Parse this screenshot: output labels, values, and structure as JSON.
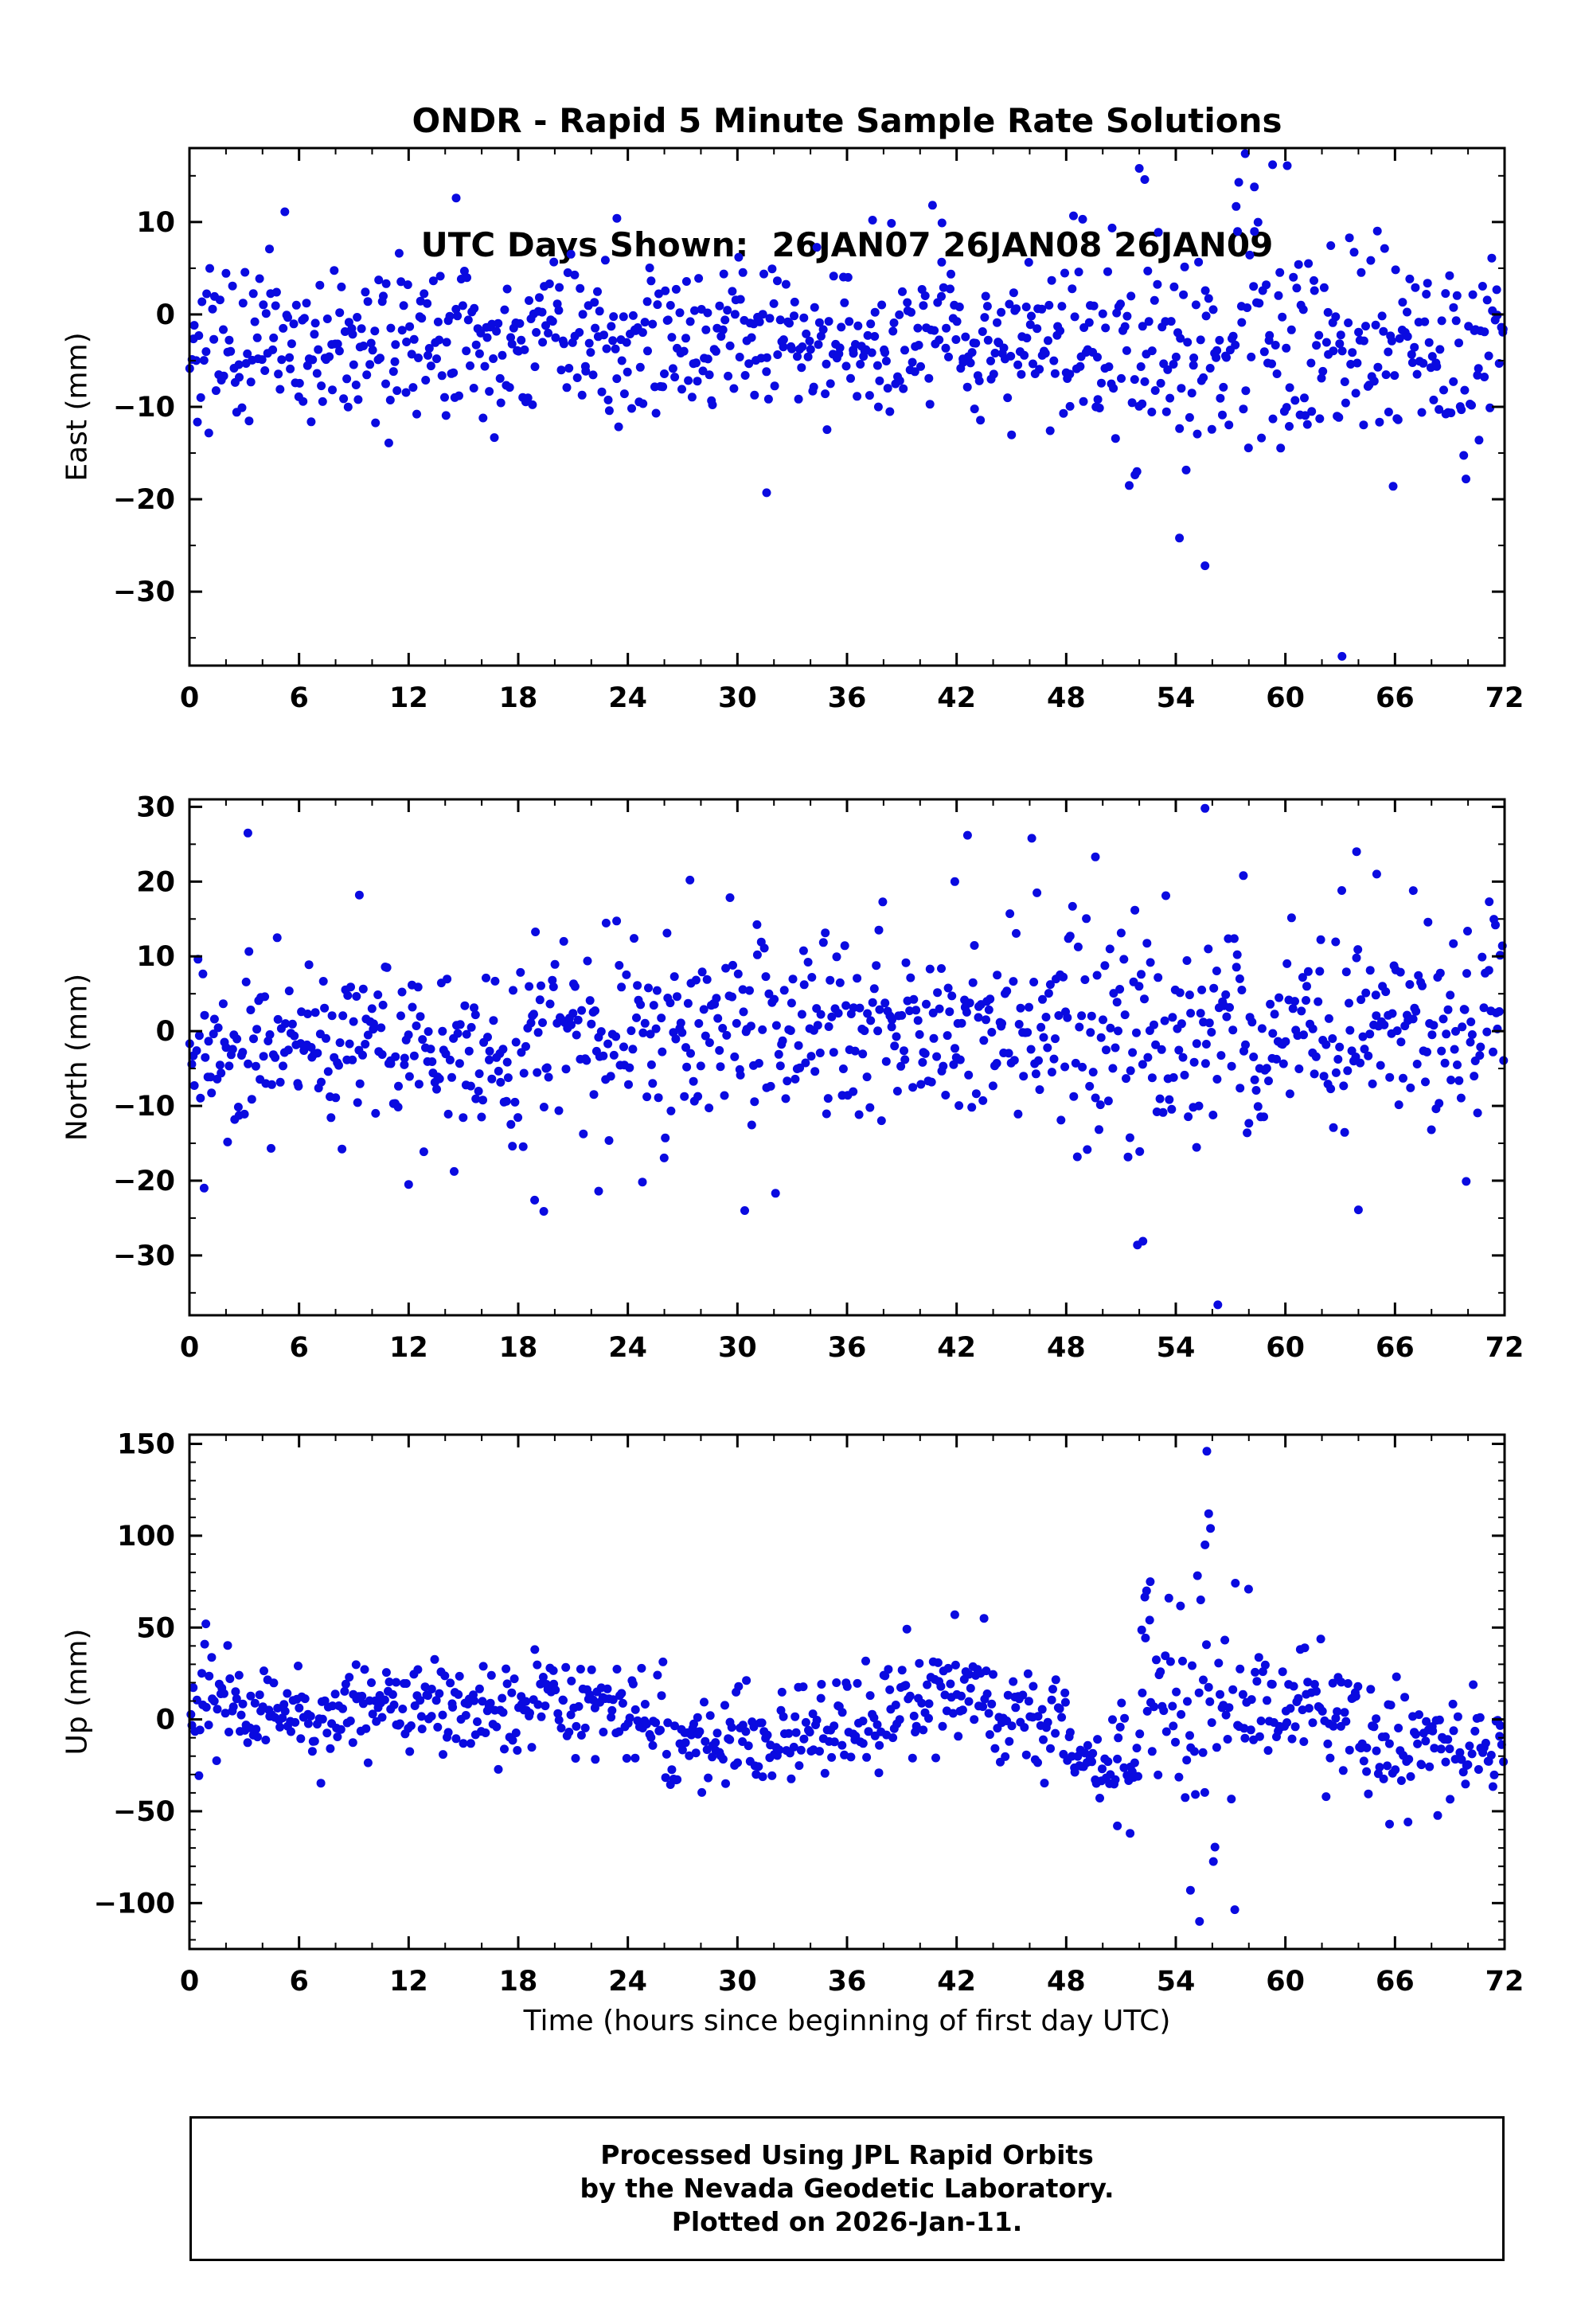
{
  "title": {
    "line1": "ONDR - Rapid 5 Minute Sample Rate Solutions",
    "line2": "UTC Days Shown:  26JAN07 26JAN08 26JAN09"
  },
  "x_axis_label": "Time (hours since beginning of first day UTC)",
  "footer": {
    "line1": "Processed Using JPL Rapid Orbits",
    "line2": "by the Nevada Geodetic Laboratory.",
    "line3": "Plotted on 2026-Jan-11."
  },
  "colors": {
    "points": "#0a0ae0",
    "axis": "#000000",
    "background": "#ffffff"
  },
  "chart_data": [
    {
      "id": "east",
      "type": "scatter",
      "ylabel": "East (mm)",
      "xlim": [
        0,
        72
      ],
      "ylim": [
        -38,
        18
      ],
      "xticks": [
        0,
        6,
        12,
        18,
        24,
        30,
        36,
        42,
        48,
        54,
        60,
        66,
        72
      ],
      "yticks": [
        10,
        0,
        -10,
        -20,
        -30
      ],
      "x_minor": 2,
      "y_minor": 5,
      "marker_radius": 5.5,
      "distribution": {
        "n_points": 850,
        "seed": 101,
        "segments": [
          {
            "x0": 0,
            "x1": 48,
            "mean": -2.8,
            "std": 4.3
          },
          {
            "x0": 48,
            "x1": 62,
            "mean": -3.2,
            "std": 6.8
          },
          {
            "x0": 62,
            "x1": 72,
            "mean": -4.5,
            "std": 5.4
          }
        ]
      },
      "outliers": [
        [
          14.6,
          12.6
        ],
        [
          31.6,
          -19.3
        ],
        [
          52.0,
          15.8
        ],
        [
          52.3,
          14.6
        ],
        [
          54.2,
          -24.2
        ],
        [
          55.6,
          -27.2
        ],
        [
          57.8,
          17.4
        ],
        [
          58.3,
          13.8
        ],
        [
          59.3,
          16.2
        ],
        [
          60.1,
          16.1
        ],
        [
          63.1,
          -37.0
        ],
        [
          23.4,
          10.4
        ],
        [
          37.4,
          10.2
        ],
        [
          48.9,
          10.3
        ],
        [
          41.2,
          9.9
        ],
        [
          65.9,
          -18.6
        ],
        [
          70.6,
          -13.6
        ]
      ]
    },
    {
      "id": "north",
      "type": "scatter",
      "ylabel": "North (mm)",
      "xlim": [
        0,
        72
      ],
      "ylim": [
        -38,
        31
      ],
      "xticks": [
        0,
        6,
        12,
        18,
        24,
        30,
        36,
        42,
        48,
        54,
        60,
        66,
        72
      ],
      "yticks": [
        30,
        20,
        10,
        0,
        -10,
        -20,
        -30
      ],
      "x_minor": 2,
      "y_minor": 5,
      "marker_radius": 5.5,
      "distribution": {
        "n_points": 850,
        "seed": 202,
        "segments": [
          {
            "x0": 0,
            "x1": 6,
            "mean": -2.0,
            "std": 6.0
          },
          {
            "x0": 6,
            "x1": 18,
            "mean": -1.8,
            "std": 5.6
          },
          {
            "x0": 18,
            "x1": 30,
            "mean": -0.6,
            "std": 6.6
          },
          {
            "x0": 30,
            "x1": 48,
            "mean": 0.6,
            "std": 6.0
          },
          {
            "x0": 48,
            "x1": 60,
            "mean": 0.2,
            "std": 7.8
          },
          {
            "x0": 60,
            "x1": 72,
            "mean": 1.4,
            "std": 6.4
          }
        ]
      },
      "outliers": [
        [
          3.2,
          26.5
        ],
        [
          9.3,
          18.2
        ],
        [
          0.8,
          -21.0
        ],
        [
          12.0,
          -20.5
        ],
        [
          18.9,
          -22.6
        ],
        [
          19.4,
          -24.1
        ],
        [
          22.4,
          -21.4
        ],
        [
          27.4,
          20.2
        ],
        [
          30.4,
          -24.0
        ],
        [
          42.6,
          26.2
        ],
        [
          41.9,
          20.0
        ],
        [
          46.4,
          18.5
        ],
        [
          49.6,
          23.3
        ],
        [
          51.9,
          -28.6
        ],
        [
          52.2,
          -28.1
        ],
        [
          55.6,
          29.8
        ],
        [
          56.3,
          -36.6
        ],
        [
          57.7,
          20.8
        ],
        [
          63.9,
          24.0
        ],
        [
          65.0,
          21.0
        ],
        [
          67.0,
          18.8
        ],
        [
          64.0,
          -23.9
        ],
        [
          69.9,
          -20.1
        ],
        [
          71.5,
          14.2
        ]
      ]
    },
    {
      "id": "up",
      "type": "scatter",
      "ylabel": "Up (mm)",
      "xlim": [
        0,
        72
      ],
      "ylim": [
        -125,
        155
      ],
      "xticks": [
        0,
        6,
        12,
        18,
        24,
        30,
        36,
        42,
        48,
        54,
        60,
        66,
        72
      ],
      "yticks": [
        150,
        100,
        50,
        0,
        -50,
        -100
      ],
      "x_minor": 2,
      "y_minor": 10,
      "marker_radius": 5.5,
      "distribution": {
        "n_points": 820,
        "seed": 303,
        "segments": [
          {
            "x0": 0,
            "x1": 4,
            "mean": 8,
            "std": 14
          },
          {
            "x0": 4,
            "x1": 12,
            "mean": 5,
            "std": 12
          },
          {
            "x0": 12,
            "x1": 20,
            "mean": 8,
            "std": 14
          },
          {
            "x0": 20,
            "x1": 26,
            "mean": 4,
            "std": 13
          },
          {
            "x0": 26,
            "x1": 34,
            "mean": -8,
            "std": 14
          },
          {
            "x0": 34,
            "x1": 38,
            "mean": -4,
            "std": 13
          },
          {
            "x0": 38,
            "x1": 44,
            "mean": 10,
            "std": 13
          },
          {
            "x0": 44,
            "x1": 48,
            "mean": 0,
            "std": 14
          },
          {
            "x0": 48,
            "x1": 52,
            "mean": -25,
            "std": 15
          },
          {
            "x0": 52,
            "x1": 54,
            "mean": 25,
            "std": 24
          },
          {
            "x0": 54,
            "x1": 58,
            "mean": 12,
            "std": 38
          },
          {
            "x0": 58,
            "x1": 64,
            "mean": 5,
            "std": 17
          },
          {
            "x0": 64,
            "x1": 68,
            "mean": -14,
            "std": 15
          },
          {
            "x0": 68,
            "x1": 72,
            "mean": -16,
            "std": 13
          }
        ]
      },
      "outliers": [
        [
          55.7,
          146
        ],
        [
          55.8,
          112
        ],
        [
          55.9,
          104
        ],
        [
          55.6,
          95
        ],
        [
          54.8,
          -93
        ],
        [
          55.3,
          -110
        ],
        [
          52.6,
          75
        ],
        [
          52.4,
          70
        ],
        [
          43.5,
          55
        ],
        [
          0.9,
          52
        ],
        [
          41.9,
          57
        ],
        [
          65.7,
          -57
        ],
        [
          51.5,
          -62
        ],
        [
          50.8,
          -58
        ]
      ]
    }
  ]
}
